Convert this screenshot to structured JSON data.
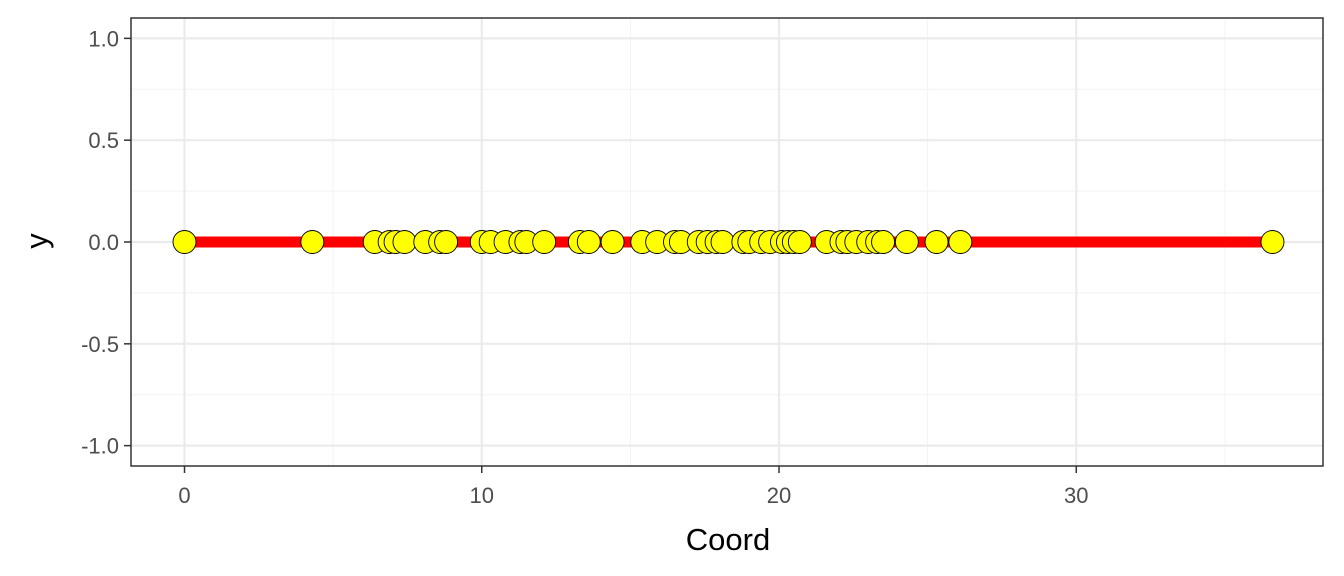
{
  "chart_data": {
    "type": "scatter",
    "title": "",
    "xlabel": "Coord",
    "ylabel": "y",
    "xlim": [
      -1.8,
      38.3
    ],
    "ylim": [
      -1.1,
      1.1
    ],
    "x_ticks": [
      0,
      10,
      20,
      30
    ],
    "x_tick_labels": [
      "0",
      "10",
      "20",
      "30"
    ],
    "y_ticks": [
      -1.0,
      -0.5,
      0.0,
      0.5,
      1.0
    ],
    "y_tick_labels": [
      "-1.0",
      "-0.5",
      "0.0",
      "0.5",
      "1.0"
    ],
    "grid": true,
    "legend": "none",
    "line": {
      "x": [
        0,
        36.6
      ],
      "y": [
        0,
        0
      ],
      "color": "#ff0000"
    },
    "points": {
      "color": "#ffff00",
      "stroke": "#000000",
      "x": [
        0,
        4.3,
        6.4,
        6.9,
        7.1,
        7.4,
        8.1,
        8.6,
        8.8,
        10.0,
        10.3,
        10.8,
        11.3,
        11.5,
        12.1,
        13.3,
        13.6,
        14.4,
        15.4,
        15.9,
        16.5,
        16.7,
        17.3,
        17.6,
        17.9,
        18.1,
        18.8,
        19.0,
        19.4,
        19.7,
        20.1,
        20.3,
        20.5,
        20.7,
        21.6,
        22.1,
        22.3,
        22.6,
        23.0,
        23.3,
        23.5,
        24.3,
        25.3,
        26.1,
        36.6
      ],
      "y": [
        0,
        0,
        0,
        0,
        0,
        0,
        0,
        0,
        0,
        0,
        0,
        0,
        0,
        0,
        0,
        0,
        0,
        0,
        0,
        0,
        0,
        0,
        0,
        0,
        0,
        0,
        0,
        0,
        0,
        0,
        0,
        0,
        0,
        0,
        0,
        0,
        0,
        0,
        0,
        0,
        0,
        0,
        0,
        0,
        0
      ]
    }
  }
}
